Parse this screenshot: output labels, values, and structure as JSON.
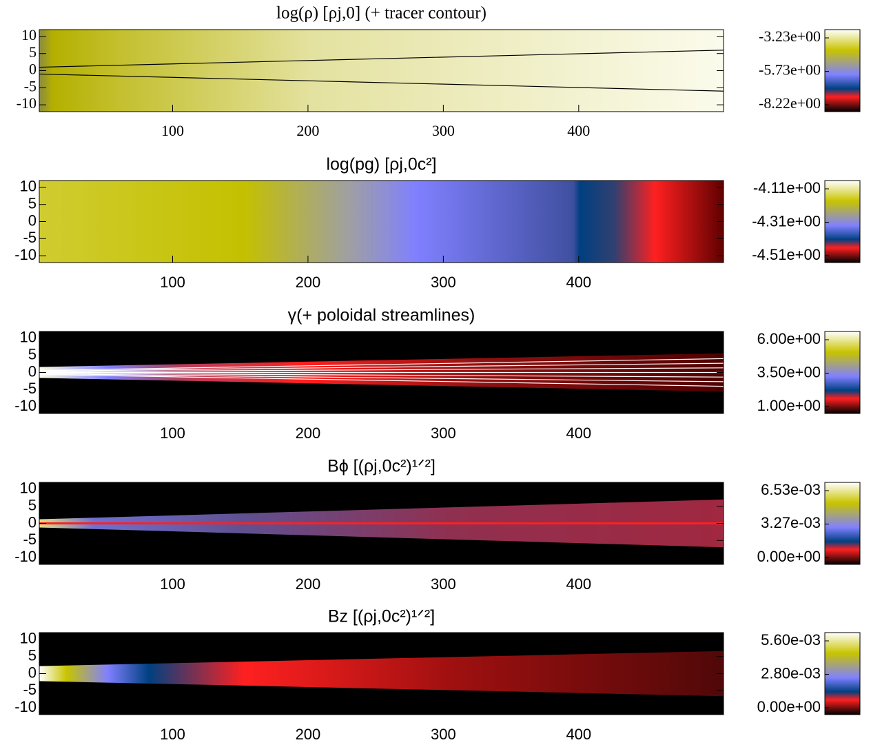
{
  "chart_data": [
    {
      "type": "heatmap",
      "title": "log(ρ) [ρj,0] (+ tracer contour)",
      "xlim": [
        1.5,
        507
      ],
      "xticks": [
        100,
        200,
        300,
        400
      ],
      "ylim": [
        -12,
        12
      ],
      "yticks": [
        10,
        5,
        0,
        -5,
        -10
      ],
      "clim": [
        -8.22,
        -3.23
      ],
      "cticks": [
        {
          "value": -3.23,
          "label": "-3.23e+00"
        },
        {
          "value": -5.73,
          "label": "-5.73e+00"
        },
        {
          "value": -8.22,
          "label": "-8.22e+00"
        }
      ]
    },
    {
      "type": "heatmap",
      "title": "log(pg) [ρj,0c²]",
      "xlim": [
        1.5,
        507
      ],
      "xticks": [
        100,
        200,
        300,
        400
      ],
      "ylim": [
        -12,
        12
      ],
      "yticks": [
        10,
        5,
        0,
        -5,
        -10
      ],
      "clim": [
        -4.51,
        -4.11
      ],
      "cticks": [
        {
          "value": -4.11,
          "label": "-4.11e+00"
        },
        {
          "value": -4.31,
          "label": "-4.31e+00"
        },
        {
          "value": -4.51,
          "label": "-4.51e+00"
        }
      ]
    },
    {
      "type": "heatmap",
      "title": "γ(+ poloidal streamlines)",
      "xlim": [
        1.5,
        507
      ],
      "xticks": [
        100,
        200,
        300,
        400
      ],
      "ylim": [
        -12,
        12
      ],
      "yticks": [
        10,
        5,
        0,
        -5,
        -10
      ],
      "clim": [
        1.0,
        6.0
      ],
      "cticks": [
        {
          "value": 6.0,
          "label": "6.00e+00"
        },
        {
          "value": 3.5,
          "label": "3.50e+00"
        },
        {
          "value": 1.0,
          "label": "1.00e+00"
        }
      ]
    },
    {
      "type": "heatmap",
      "title": "Bϕ [(ρj,0c²)¹ᐟ²]",
      "xlim": [
        1.5,
        507
      ],
      "xticks": [
        100,
        200,
        300,
        400
      ],
      "ylim": [
        -12,
        12
      ],
      "yticks": [
        10,
        5,
        0,
        -5,
        -10
      ],
      "clim": [
        0.0,
        0.00653
      ],
      "cticks": [
        {
          "value": 0.00653,
          "label": "6.53e-03"
        },
        {
          "value": 0.00327,
          "label": "3.27e-03"
        },
        {
          "value": 0.0,
          "label": "0.00e+00"
        }
      ]
    },
    {
      "type": "heatmap",
      "title": "Bz [(ρj,0c²)¹ᐟ²]",
      "xlim": [
        1.5,
        507
      ],
      "xticks": [
        100,
        200,
        300,
        400
      ],
      "ylim": [
        -12,
        12
      ],
      "yticks": [
        10,
        5,
        0,
        -5,
        -10
      ],
      "clim": [
        0.0,
        0.0056
      ],
      "cticks": [
        {
          "value": 0.0056,
          "label": "5.60e-03"
        },
        {
          "value": 0.0028,
          "label": "2.80e-03"
        },
        {
          "value": 0.0,
          "label": "0.00e+00"
        }
      ]
    }
  ]
}
